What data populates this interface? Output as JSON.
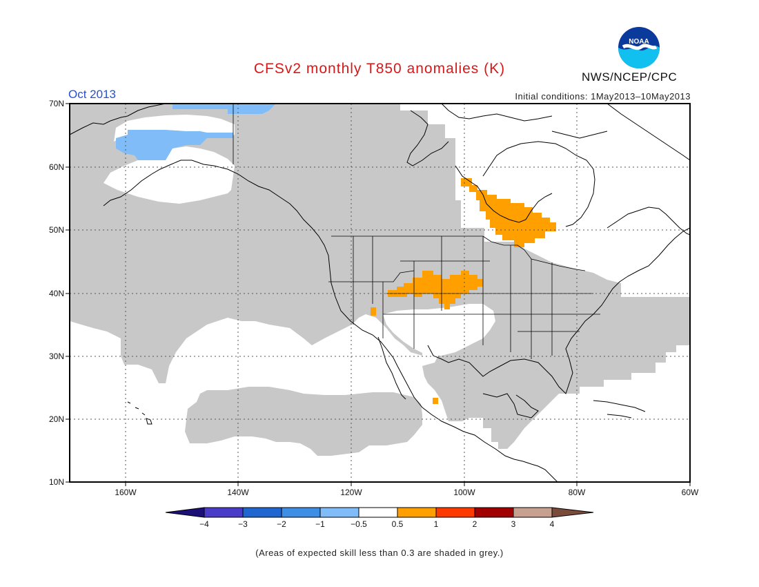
{
  "title": "CFSv2 monthly T850 anomalies (K)",
  "month_label": "Oct 2013",
  "initial_conditions": "Initial conditions: 1May2013–10May2013",
  "org": "NWS/NCEP/CPC",
  "logo_text": "NOAA",
  "footnote": "(Areas of expected skill less than 0.3 are shaded in grey.)",
  "map": {
    "lon_range": [
      -170,
      -60
    ],
    "lat_range": [
      10,
      70
    ],
    "lat_ticks": [
      "70N",
      "60N",
      "50N",
      "40N",
      "30N",
      "20N",
      "10N"
    ],
    "lon_ticks": [
      "160W",
      "140W",
      "120W",
      "100W",
      "80W",
      "60W"
    ],
    "grid": "dotted",
    "grey_color": "#c8c8c8"
  },
  "colorbar": {
    "labels": [
      "−4",
      "−3",
      "−2",
      "−1",
      "−0.5",
      "0.5",
      "1",
      "2",
      "3",
      "4"
    ],
    "colors": [
      "#1c0f78",
      "#4a3cc8",
      "#1f66d0",
      "#3f8ee6",
      "#7fbcf8",
      "#ffffff",
      "#ff9f00",
      "#ff3a00",
      "#a00000",
      "#c8a090",
      "#7a4a3a"
    ]
  },
  "anomalies": [
    {
      "name": "alaska-cool-anomaly",
      "level": "-1 to -0.5",
      "color": "#7fbcf8"
    },
    {
      "name": "hudson-bay-warm-anomaly",
      "level": "0.5 to 1",
      "color": "#ff9f00"
    },
    {
      "name": "central-plains-warm-anomaly",
      "level": "0.5 to 1",
      "color": "#ff9f00"
    }
  ]
}
